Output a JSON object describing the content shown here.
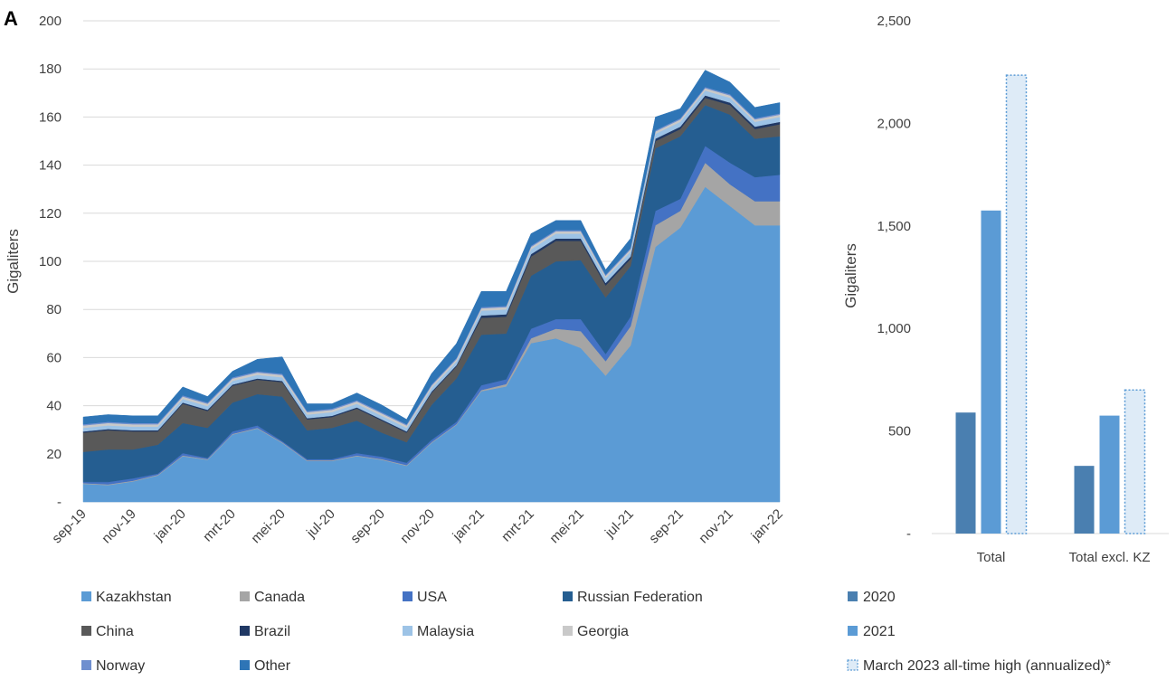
{
  "figure": {
    "panel_label": "A"
  },
  "chart_data": [
    {
      "type": "area",
      "stacked": true,
      "title": "",
      "xlabel": "",
      "ylabel": "Gigaliters",
      "ylim": [
        0,
        200
      ],
      "y_ticks": [
        "-",
        "20",
        "40",
        "60",
        "80",
        "100",
        "120",
        "140",
        "160",
        "180",
        "200"
      ],
      "grid": true,
      "legend_position": "bottom",
      "x": [
        "sep-19",
        "okt-19",
        "nov-19",
        "dec-19",
        "jan-20",
        "feb-20",
        "mrt-20",
        "apr-20",
        "mei-20",
        "jun-20",
        "jul-20",
        "aug-20",
        "sep-20",
        "okt-20",
        "nov-20",
        "dec-20",
        "jan-21",
        "feb-21",
        "mrt-21",
        "apr-21",
        "mei-21",
        "jun-21",
        "jul-21",
        "aug-21",
        "sep-21",
        "okt-21",
        "nov-21",
        "dec-21",
        "jan-22"
      ],
      "x_tick_labels": [
        "sep-19",
        "nov-19",
        "jan-20",
        "mrt-20",
        "mei-20",
        "jul-20",
        "sep-20",
        "nov-20",
        "jan-21",
        "mrt-21",
        "mei-21",
        "jul-21",
        "sep-21",
        "nov-21",
        "jan-22"
      ],
      "series": [
        {
          "name": "Kazakhstan",
          "color": "#5b9bd5",
          "values": [
            7.5,
            7,
            8.5,
            11,
            19,
            17.5,
            28,
            30.5,
            24.5,
            17,
            17,
            19,
            17.5,
            15,
            24.5,
            32,
            46,
            48,
            66,
            68,
            64,
            52.5,
            65,
            106,
            114,
            131,
            123,
            115,
            115
          ]
        },
        {
          "name": "Canada",
          "color": "#a5a5a5",
          "values": [
            0.3,
            0.3,
            0.3,
            0.3,
            0.3,
            0.3,
            0.3,
            0.3,
            0.3,
            0.3,
            0.3,
            0.3,
            0.3,
            0.3,
            0.3,
            0.3,
            0.5,
            1,
            2,
            4,
            7,
            6,
            8,
            9,
            7,
            10,
            9,
            10,
            10
          ]
        },
        {
          "name": "USA",
          "color": "#4472c4",
          "values": [
            0.5,
            1,
            1,
            0.5,
            1,
            0.5,
            1,
            1,
            0.5,
            0.5,
            0.5,
            1,
            1,
            1,
            1,
            1,
            2,
            2,
            4,
            4,
            5,
            3,
            4,
            6,
            5,
            7,
            9,
            10,
            11
          ]
        },
        {
          "name": "Russian Federation",
          "color": "#255e91",
          "values": [
            12.5,
            13.5,
            12,
            12,
            12.5,
            12.5,
            12,
            13,
            18.5,
            12,
            13,
            13.5,
            10,
            8.5,
            14.5,
            18,
            21,
            19,
            22,
            24,
            24.5,
            23.5,
            21,
            26,
            26,
            17,
            20,
            16,
            16
          ]
        },
        {
          "name": "China",
          "color": "#595959",
          "values": [
            8,
            8,
            7.5,
            5.5,
            8,
            7,
            7,
            6,
            6,
            4.5,
            4.5,
            5,
            5,
            4,
            5,
            5,
            7,
            7,
            8,
            8.5,
            8,
            5,
            3,
            3,
            3,
            3,
            4,
            4,
            5
          ]
        },
        {
          "name": "Brazil",
          "color": "#203864",
          "values": [
            0.5,
            0.5,
            0.5,
            0.5,
            0.5,
            0.5,
            0.5,
            0.5,
            0.5,
            0.5,
            0.5,
            0.5,
            0.5,
            0.5,
            0.5,
            0.5,
            1,
            1,
            1,
            1,
            1,
            1,
            1,
            1,
            1,
            1,
            1,
            1,
            1
          ]
        },
        {
          "name": "Malaysia",
          "color": "#9dc3e6",
          "values": [
            1.5,
            1.5,
            1.5,
            1.5,
            1.5,
            1.5,
            1.5,
            1.5,
            1.5,
            1.5,
            1.5,
            1.5,
            1.5,
            1.5,
            1.5,
            1.5,
            2,
            2,
            2,
            2,
            2,
            2,
            2,
            2,
            2,
            2,
            2,
            2,
            2
          ]
        },
        {
          "name": "Georgia",
          "color": "#c9c9c9",
          "values": [
            1,
            1,
            1,
            1,
            1,
            1,
            1,
            1,
            1,
            1,
            1,
            1,
            1,
            1,
            1,
            1,
            1,
            1,
            1,
            1,
            1,
            1,
            1,
            1,
            1,
            1,
            1,
            1,
            1
          ]
        },
        {
          "name": "Norway",
          "color": "#6f8fcf",
          "values": [
            0.5,
            0.5,
            0.5,
            0.5,
            0.5,
            0.5,
            0.5,
            0.5,
            0.5,
            0.5,
            0.5,
            0.5,
            0.5,
            0.5,
            0.5,
            0.5,
            0.5,
            0.5,
            0.5,
            0.5,
            0.5,
            0.5,
            0.5,
            0.5,
            0.5,
            0.5,
            0.5,
            0.5,
            0.5
          ]
        },
        {
          "name": "Other",
          "color": "#2e75b6",
          "values": [
            3,
            3,
            3,
            3,
            3.5,
            2.5,
            2.5,
            5,
            7,
            3,
            2,
            3,
            3,
            2,
            4.5,
            6,
            6.5,
            6,
            5,
            4,
            4,
            2,
            4,
            5.5,
            4,
            7,
            5,
            4.5,
            4.5
          ]
        }
      ]
    },
    {
      "type": "bar",
      "title": "",
      "xlabel": "",
      "ylabel": "Gigaliters",
      "ylim": [
        0,
        2500
      ],
      "y_ticks": [
        "-",
        "500",
        "1,000",
        "1,500",
        "2,000",
        "2,500"
      ],
      "grid": false,
      "legend_position": "bottom-right",
      "categories": [
        "Total",
        "Total excl. KZ"
      ],
      "series": [
        {
          "name": "2020",
          "color": "#4a7fb0",
          "style": "solid",
          "values": [
            590,
            330
          ]
        },
        {
          "name": "2021",
          "color": "#5b9bd5",
          "style": "solid",
          "values": [
            1575,
            575
          ]
        },
        {
          "name": "March 2023 all-time high (annualized)*",
          "color": "#deebf7",
          "border": "#5b9bd5",
          "style": "dotted",
          "values": [
            2235,
            700
          ]
        }
      ]
    }
  ]
}
